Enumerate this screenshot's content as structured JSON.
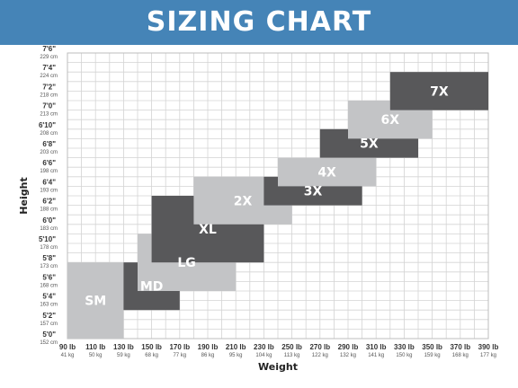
{
  "header": {
    "title": "SIZING CHART"
  },
  "colors": {
    "header_bg": "#4584b7",
    "dark_box": "#58585a",
    "light_box": "#c3c4c6",
    "grid": "#d4d4d4",
    "axis_text": "#333333"
  },
  "chart_data": {
    "type": "box-region",
    "title": "SIZING CHART",
    "xlabel": "Weight",
    "ylabel": "Height",
    "x_ticks": [
      {
        "value": 90,
        "label": "90 lb",
        "sub": "41 kg"
      },
      {
        "value": 110,
        "label": "110 lb",
        "sub": "50 kg"
      },
      {
        "value": 130,
        "label": "130 lb",
        "sub": "59 kg"
      },
      {
        "value": 150,
        "label": "150 lb",
        "sub": "68 kg"
      },
      {
        "value": 170,
        "label": "170 lb",
        "sub": "77 kg"
      },
      {
        "value": 190,
        "label": "190 lb",
        "sub": "86 kg"
      },
      {
        "value": 210,
        "label": "210 lb",
        "sub": "95 kg"
      },
      {
        "value": 230,
        "label": "230 lb",
        "sub": "104 kg"
      },
      {
        "value": 250,
        "label": "250 lb",
        "sub": "113 kg"
      },
      {
        "value": 270,
        "label": "270 lb",
        "sub": "122 kg"
      },
      {
        "value": 290,
        "label": "290 lb",
        "sub": "132 kg"
      },
      {
        "value": 310,
        "label": "310 lb",
        "sub": "141 kg"
      },
      {
        "value": 330,
        "label": "330 lb",
        "sub": "150 kg"
      },
      {
        "value": 350,
        "label": "350 lb",
        "sub": "159 kg"
      },
      {
        "value": 370,
        "label": "370 lb",
        "sub": "168 kg"
      },
      {
        "value": 390,
        "label": "390 lb",
        "sub": "177 kg"
      }
    ],
    "y_ticks": [
      {
        "value": 60,
        "label": "5'0\"",
        "sub": "152 cm"
      },
      {
        "value": 62,
        "label": "5'2\"",
        "sub": "157 cm"
      },
      {
        "value": 64,
        "label": "5'4\"",
        "sub": "163 cm"
      },
      {
        "value": 66,
        "label": "5'6\"",
        "sub": "168 cm"
      },
      {
        "value": 68,
        "label": "5'8\"",
        "sub": "173 cm"
      },
      {
        "value": 70,
        "label": "5'10\"",
        "sub": "178 cm"
      },
      {
        "value": 72,
        "label": "6'0\"",
        "sub": "183 cm"
      },
      {
        "value": 74,
        "label": "6'2\"",
        "sub": "188 cm"
      },
      {
        "value": 76,
        "label": "6'4\"",
        "sub": "193 cm"
      },
      {
        "value": 78,
        "label": "6'6\"",
        "sub": "198 cm"
      },
      {
        "value": 80,
        "label": "6'8\"",
        "sub": "203 cm"
      },
      {
        "value": 82,
        "label": "6'10\"",
        "sub": "208 cm"
      },
      {
        "value": 84,
        "label": "7'0\"",
        "sub": "213 cm"
      },
      {
        "value": 86,
        "label": "7'2\"",
        "sub": "218 cm"
      },
      {
        "value": 88,
        "label": "7'4\"",
        "sub": "224 cm"
      },
      {
        "value": 90,
        "label": "7'6\"",
        "sub": "229 cm"
      }
    ],
    "xlim": [
      90,
      390
    ],
    "ylim": [
      60,
      90
    ],
    "grid": true,
    "sizes": [
      {
        "label": "SM",
        "weight_lb": [
          90,
          130
        ],
        "height_in": [
          60,
          68
        ],
        "shade": "light"
      },
      {
        "label": "MD",
        "weight_lb": [
          130,
          170
        ],
        "height_in": [
          63,
          68
        ],
        "shade": "dark"
      },
      {
        "label": "LG",
        "weight_lb": [
          140,
          210
        ],
        "height_in": [
          65,
          71
        ],
        "shade": "light"
      },
      {
        "label": "XL",
        "weight_lb": [
          150,
          230
        ],
        "height_in": [
          68,
          75
        ],
        "shade": "dark"
      },
      {
        "label": "2X",
        "weight_lb": [
          180,
          250
        ],
        "height_in": [
          72,
          77
        ],
        "shade": "light"
      },
      {
        "label": "3X",
        "weight_lb": [
          230,
          300
        ],
        "height_in": [
          74,
          77
        ],
        "shade": "dark"
      },
      {
        "label": "4X",
        "weight_lb": [
          240,
          310
        ],
        "height_in": [
          76,
          79
        ],
        "shade": "light"
      },
      {
        "label": "5X",
        "weight_lb": [
          270,
          340
        ],
        "height_in": [
          79,
          82
        ],
        "shade": "dark"
      },
      {
        "label": "6X",
        "weight_lb": [
          290,
          350
        ],
        "height_in": [
          81,
          85
        ],
        "shade": "light"
      },
      {
        "label": "7X",
        "weight_lb": [
          320,
          390
        ],
        "height_in": [
          84,
          88
        ],
        "shade": "dark"
      }
    ]
  }
}
